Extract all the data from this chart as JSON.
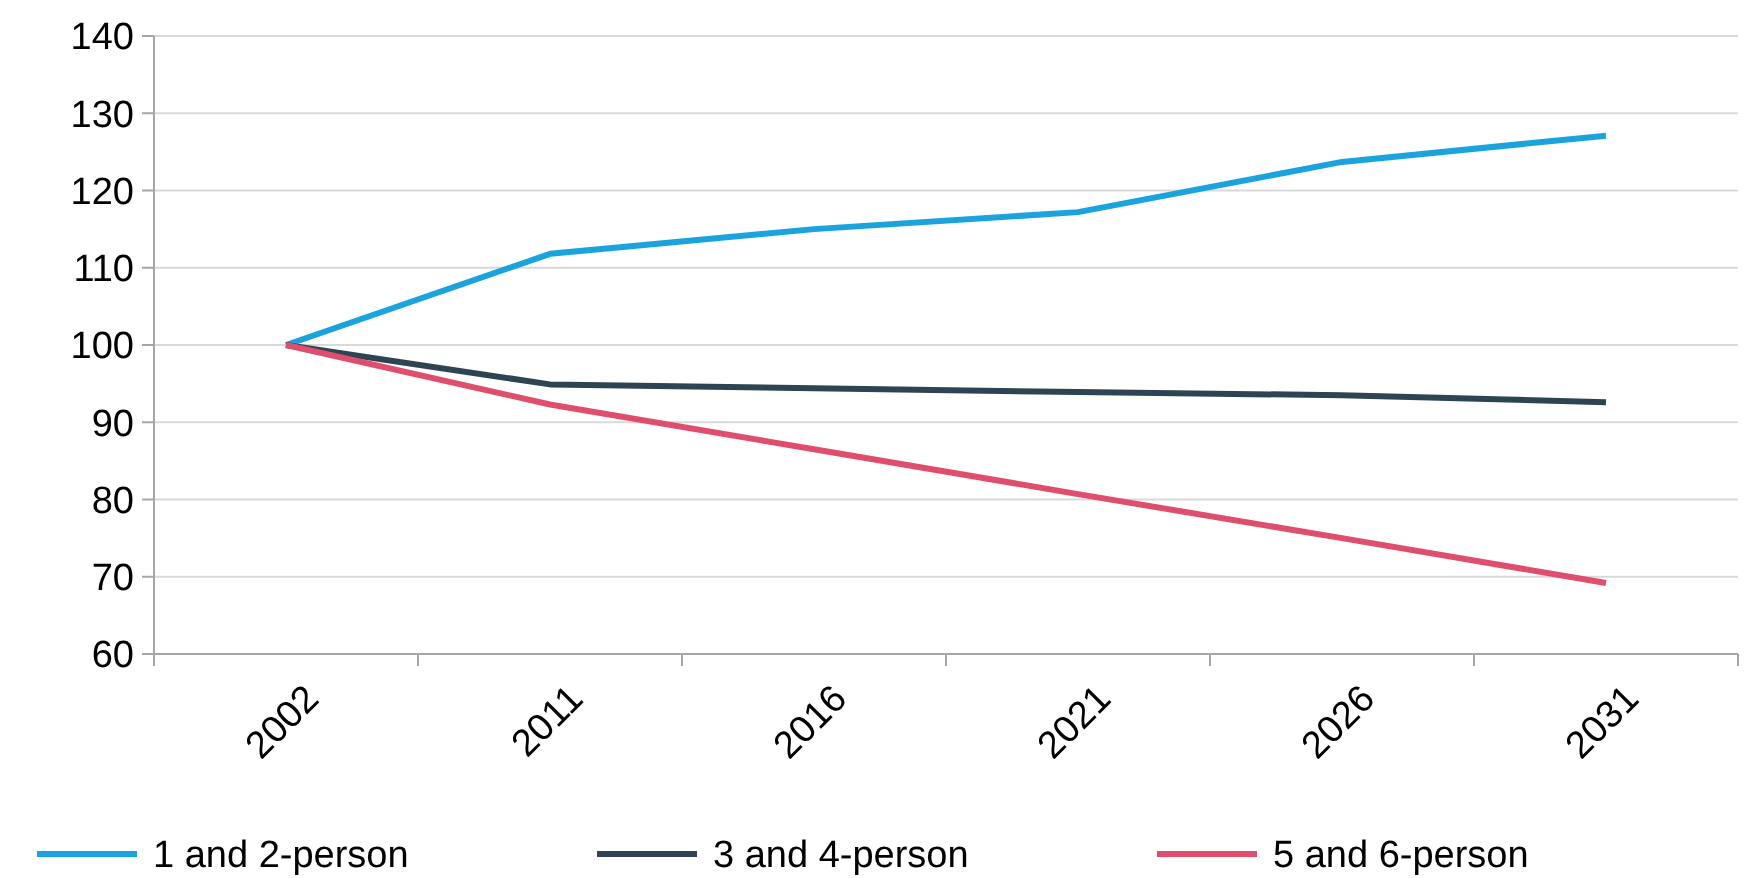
{
  "chart_data": {
    "type": "line",
    "categories": [
      "2002",
      "2011",
      "2016",
      "2021",
      "2026",
      "2031"
    ],
    "series": [
      {
        "name": "1 and 2-person",
        "color": "#1aa3dc",
        "values": [
          100,
          111.8,
          115,
          117.2,
          123.7,
          127.1
        ]
      },
      {
        "name": "3 and 4-person",
        "color": "#2d4552",
        "values": [
          100,
          94.9,
          94.4,
          93.9,
          93.5,
          92.6
        ]
      },
      {
        "name": "5 and 6-person",
        "color": "#df4f6d",
        "values": [
          100,
          92.3,
          86.5,
          80.7,
          75,
          69.2
        ]
      }
    ],
    "ylim": [
      60,
      140
    ],
    "yticks": [
      60,
      70,
      80,
      90,
      100,
      110,
      120,
      130,
      140
    ],
    "grid": "y",
    "legend": "bottom",
    "marker": "none",
    "line_style": "solid"
  }
}
